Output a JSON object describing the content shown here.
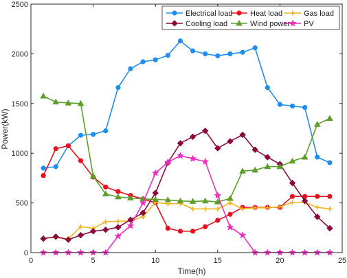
{
  "chart_data": {
    "type": "line",
    "xlabel": "Time(h)",
    "ylabel": "Power(kW)",
    "xlim": [
      0,
      25
    ],
    "ylim": [
      0,
      2500
    ],
    "xticks": [
      0,
      5,
      10,
      15,
      20,
      25
    ],
    "yticks": [
      0,
      500,
      1000,
      1500,
      2000,
      2500
    ],
    "grid": false,
    "legend_position": "top-right",
    "x": [
      1,
      2,
      3,
      4,
      5,
      6,
      7,
      8,
      9,
      10,
      11,
      12,
      13,
      14,
      15,
      16,
      17,
      18,
      19,
      20,
      21,
      22,
      23,
      24
    ],
    "series": [
      {
        "name": "Electrical load",
        "color": "#1f8ef1",
        "marker": "circle",
        "values": [
          850,
          865,
          1075,
          1180,
          1190,
          1225,
          1660,
          1850,
          1920,
          1940,
          1985,
          2130,
          2030,
          2000,
          1980,
          2000,
          2015,
          2060,
          1660,
          1490,
          1475,
          1460,
          960,
          905
        ]
      },
      {
        "name": "Heat load",
        "color": "#e8101e",
        "marker": "circle",
        "values": [
          775,
          1045,
          1075,
          925,
          760,
          660,
          615,
          575,
          540,
          500,
          245,
          215,
          215,
          260,
          325,
          385,
          455,
          455,
          455,
          455,
          565,
          565,
          565,
          565
        ]
      },
      {
        "name": "Gas load",
        "color": "#f0b41e",
        "marker": "plus",
        "values": [
          150,
          150,
          140,
          260,
          245,
          310,
          315,
          320,
          360,
          505,
          490,
          495,
          440,
          440,
          440,
          500,
          440,
          450,
          450,
          460,
          505,
          505,
          455,
          440
        ]
      },
      {
        "name": "Cooling load",
        "color": "#8b0a3c",
        "marker": "diamond",
        "values": [
          140,
          160,
          130,
          175,
          215,
          230,
          255,
          330,
          400,
          600,
          905,
          1100,
          1165,
          1225,
          1050,
          1120,
          1185,
          1035,
          960,
          890,
          700,
          520,
          360,
          245
        ]
      },
      {
        "name": "Wind power",
        "color": "#5d9e2a",
        "marker": "triangle",
        "values": [
          1575,
          1515,
          1505,
          1500,
          770,
          590,
          560,
          550,
          540,
          535,
          530,
          520,
          515,
          520,
          510,
          545,
          820,
          830,
          865,
          865,
          920,
          960,
          1290,
          1350
        ]
      },
      {
        "name": "PV",
        "color": "#ee2fbe",
        "marker": "star",
        "values": [
          0,
          0,
          0,
          0,
          0,
          0,
          165,
          270,
          500,
          800,
          910,
          975,
          945,
          915,
          575,
          255,
          175,
          0,
          0,
          0,
          0,
          0,
          0,
          0
        ]
      }
    ]
  }
}
